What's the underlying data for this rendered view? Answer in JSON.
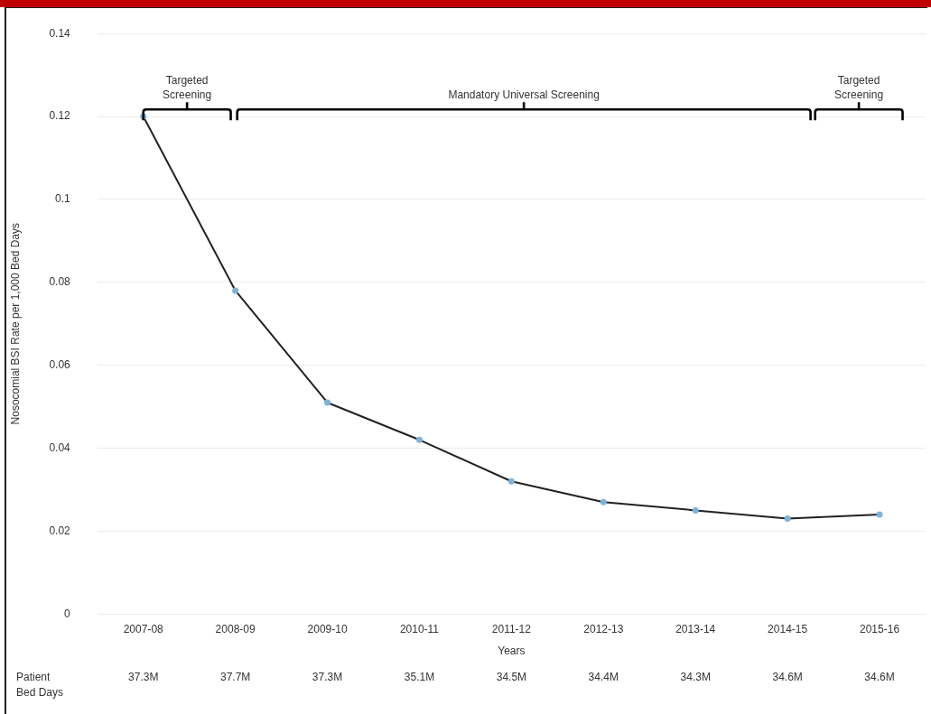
{
  "chart_data": {
    "type": "line",
    "ylabel": "Nosocomial BSI Rate per 1,000 Bed Days",
    "xlabel": "Years",
    "categories": [
      "2007-08",
      "2008-09",
      "2009-10",
      "2010-11",
      "2011-12",
      "2012-13",
      "2013-14",
      "2014-15",
      "2015-16"
    ],
    "series": [
      {
        "color": "#222222",
        "values": [
          0.12,
          0.078,
          0.051,
          0.042,
          0.032,
          0.027,
          0.025,
          0.023,
          0.024
        ]
      }
    ],
    "ylim": [
      0,
      0.14
    ],
    "yticks": [
      0,
      0.02,
      0.04,
      0.06,
      0.08,
      0.1,
      0.12,
      0.14
    ],
    "grid": "y",
    "legend": false,
    "marker": "circle",
    "line_style": "solid",
    "annotations": [
      "Targeted Screening",
      "Mandatory Universal Screening",
      "Targeted Screening",
      "Patient Bed Days",
      "37.3M",
      "37.7M",
      "37.3M",
      "35.1M",
      "34.5M",
      "34.4M",
      "34.3M",
      "34.6M",
      "34.6M"
    ]
  }
}
